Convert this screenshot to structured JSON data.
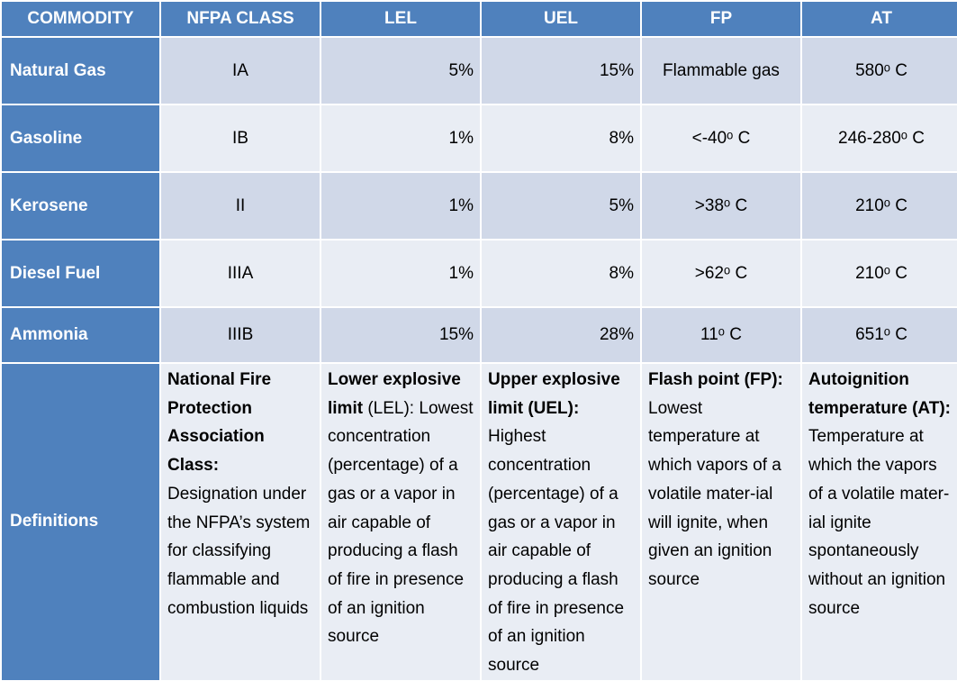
{
  "headers": [
    "COMMODITY",
    "NFPA CLASS",
    "LEL",
    "UEL",
    "FP",
    "AT"
  ],
  "rows": [
    {
      "commodity": "Natural Gas",
      "nfpa": "IA",
      "lel": "5%",
      "uel": "15%",
      "fp": "Flammable gas",
      "at": "580ᵒ C"
    },
    {
      "commodity": "Gasoline",
      "nfpa": "IB",
      "lel": "1%",
      "uel": "8%",
      "fp": "<-40ᵒ C",
      "at": "246-280ᵒ C"
    },
    {
      "commodity": "Kerosene",
      "nfpa": "II",
      "lel": "1%",
      "uel": "5%",
      "fp": ">38ᵒ C",
      "at": "210ᵒ C"
    },
    {
      "commodity": "Diesel Fuel",
      "nfpa": "IIIA",
      "lel": "1%",
      "uel": "8%",
      "fp": ">62ᵒ C",
      "at": "210ᵒ C"
    },
    {
      "commodity": "Ammonia",
      "nfpa": "IIIB",
      "lel": "15%",
      "uel": "28%",
      "fp": "11ᵒ C",
      "at": "651ᵒ C"
    }
  ],
  "definitions": {
    "label": "Definitions",
    "nfpa": {
      "term": "National Fire Protection Association Class:",
      "text": "Designation under the NFPA’s system for classifying flammable and combustion liquids"
    },
    "lel": {
      "term": "Lower explosive limit",
      "abbr": " (LEL):",
      "text": "Lowest concentration (percentage) of a gas or a vapor in air capable of producing a flash of fire in presence of an ignition source"
    },
    "uel": {
      "term": "Upper explosive limit (UEL):",
      "text": "Highest concentration (percentage) of a gas or a vapor in air capable of producing a flash of fire in presence of an ignition source"
    },
    "fp": {
      "term": "Flash point (FP):",
      "text": "Lowest temperature at which vapors of a volatile mater-ial will ignite, when given an ignition source"
    },
    "at": {
      "term": "Autoignition temperature (AT):",
      "text": "Temperature at which the vapors of a volatile mater-ial ignite spontaneously without an ignition source"
    }
  }
}
